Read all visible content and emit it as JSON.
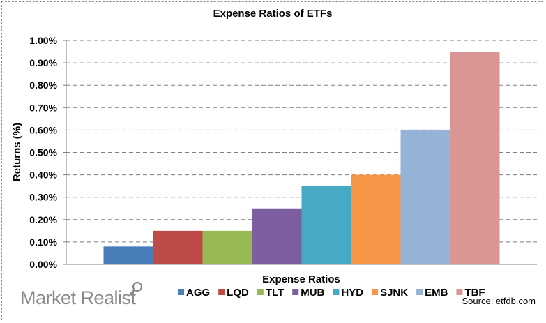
{
  "chart_data": {
    "type": "bar",
    "title": "Expense Ratios of ETFs",
    "xlabel": "Expense Ratios",
    "ylabel": "Returns (%)",
    "ylim": [
      0,
      1.0
    ],
    "yticks": [
      0,
      0.1,
      0.2,
      0.3,
      0.4,
      0.5,
      0.6,
      0.7,
      0.8,
      0.9,
      1.0
    ],
    "ytick_labels": [
      "0.00%",
      "0.10%",
      "0.20%",
      "0.30%",
      "0.40%",
      "0.50%",
      "0.60%",
      "0.70%",
      "0.80%",
      "0.90%",
      "1.00%"
    ],
    "grid": "horizontal dashed",
    "legend_position": "bottom",
    "series": [
      {
        "name": "AGG",
        "values": [
          0.08
        ],
        "color": "#4A7EBB"
      },
      {
        "name": "LQD",
        "values": [
          0.15
        ],
        "color": "#BE4B48"
      },
      {
        "name": "TLT",
        "values": [
          0.15
        ],
        "color": "#98B954"
      },
      {
        "name": "MUB",
        "values": [
          0.25
        ],
        "color": "#7D5FA0"
      },
      {
        "name": "HYD",
        "values": [
          0.35
        ],
        "color": "#46AAC5"
      },
      {
        "name": "SJNK",
        "values": [
          0.4
        ],
        "color": "#F79646"
      },
      {
        "name": "EMB",
        "values": [
          0.6
        ],
        "color": "#95B3D7"
      },
      {
        "name": "TBF",
        "values": [
          0.95
        ],
        "color": "#D99694"
      }
    ]
  },
  "source": "Source: etfdb.com",
  "watermark": "Market Realist",
  "watermark_icon": "magnifier-icon"
}
